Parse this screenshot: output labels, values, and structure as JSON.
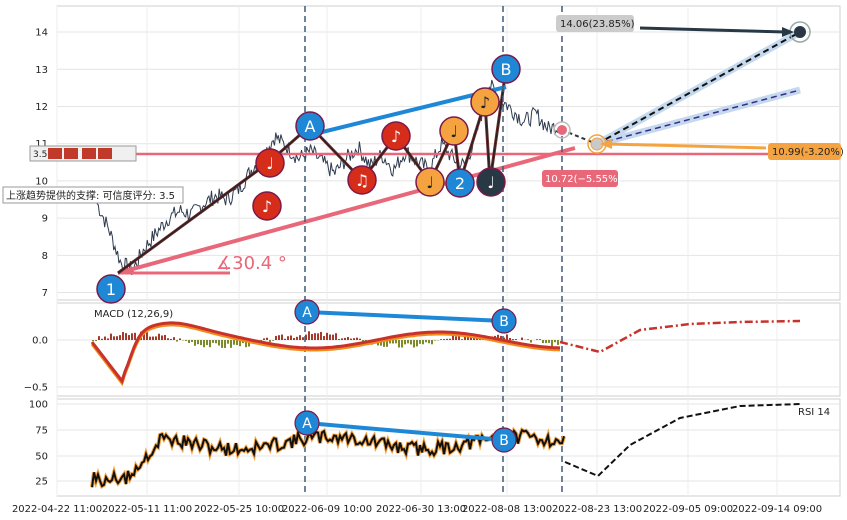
{
  "chart_data": [
    {
      "type": "line",
      "panel": "price",
      "y_ticks": [
        7,
        8,
        9,
        10,
        11,
        12,
        13,
        14
      ],
      "ylim": [
        6.8,
        14.7
      ],
      "horizontal_level": 10.8,
      "label_support": "上涨趋势提供的支撑: 可信度评分: 3.5",
      "label_left_stub": "3.5",
      "label_target_top": "14.06(23.85%)",
      "label_level_right": "10.99(-3.20%)",
      "label_level_left": "10.72(−5.55%)",
      "label_angle": "∡30.4 °",
      "markers": [
        "1",
        "♪",
        "♩",
        "A",
        "♫",
        "♪",
        "♩",
        "♩",
        "2",
        "♪",
        "♩",
        "B"
      ],
      "series": [
        {
          "values": [
            9.4,
            8.7,
            7.8,
            7.6,
            8.2,
            8.6,
            9.0,
            9.2,
            9.1,
            9.4,
            9.6,
            9.5,
            9.8,
            10.3,
            10.7,
            11.2,
            10.9,
            10.6,
            10.8,
            10.5,
            10.2,
            10.6,
            10.9,
            10.4,
            10.7,
            10.3,
            10.8,
            10.5,
            10.3,
            11.0,
            10.6,
            10.4,
            11.3,
            12.6,
            12.2,
            11.9,
            11.6,
            11.8,
            11.4,
            11.5
          ]
        }
      ]
    },
    {
      "type": "line",
      "panel": "macd",
      "label": "MACD (12,26,9)",
      "y_ticks": [
        "0.0",
        "−0.5"
      ],
      "markers": [
        "A",
        "B"
      ]
    },
    {
      "type": "line",
      "panel": "rsi",
      "label": "RSI 14",
      "y_ticks": [
        "100",
        "75",
        "50",
        "25"
      ],
      "markers": [
        "A",
        "B"
      ]
    }
  ],
  "x_ticks": [
    "2022-04-22 11:00",
    "2022-05-11 11:00",
    "2022-05-25 10:00",
    "2022-06-09 10:00",
    "2022-06-30 13:00",
    "2022-08-08 13:00",
    "2022-08-23 13:00",
    "2022-09-05 09:00",
    "2022-09-14 09:00"
  ],
  "colors": {
    "pink": "#e8687a",
    "blue": "#1e88d6",
    "dark": "#283845",
    "orange": "#f5a340",
    "red": "#d62c1a",
    "black": "#111111"
  }
}
